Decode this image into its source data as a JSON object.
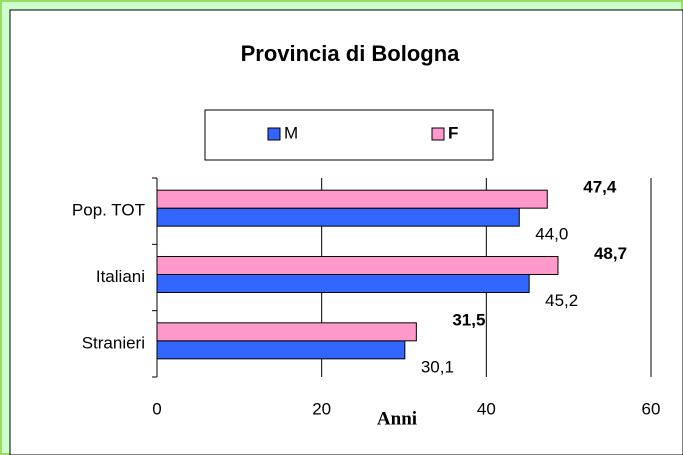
{
  "chart_data": {
    "type": "bar",
    "orientation": "horizontal",
    "title": "Provincia di Bologna",
    "xlabel": "Anni",
    "categories": [
      "Pop. TOT",
      "Italiani",
      "Stranieri"
    ],
    "series": [
      {
        "name": "M",
        "color": "#3366ff",
        "values": [
          44.0,
          45.2,
          30.1
        ],
        "value_labels": [
          "44,0",
          "45,2",
          "30,1"
        ]
      },
      {
        "name": "F",
        "color": "#ff99cc",
        "values": [
          47.4,
          48.7,
          31.5
        ],
        "value_labels": [
          "47,4",
          "48,7",
          "31,5"
        ]
      }
    ],
    "xlim": [
      0,
      60
    ],
    "xticks": [
      0,
      20,
      40,
      60
    ],
    "grid": true
  }
}
